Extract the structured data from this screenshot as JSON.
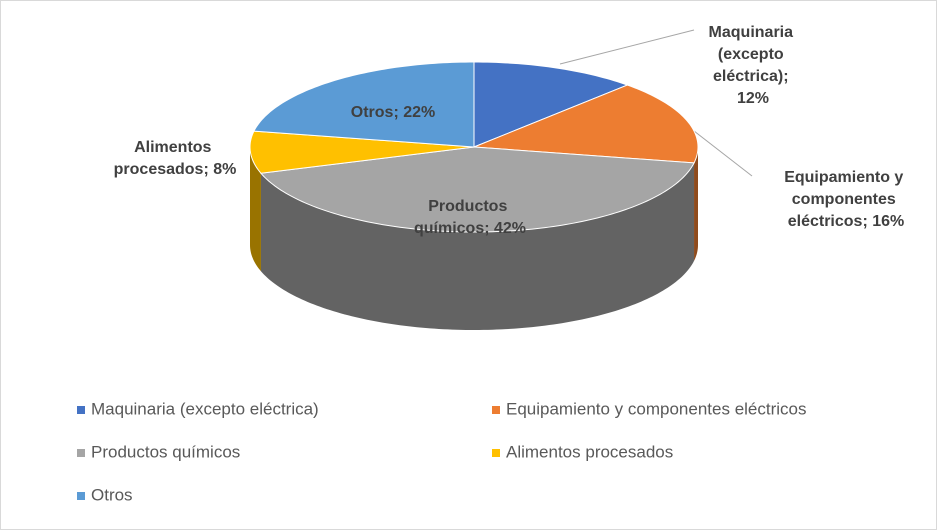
{
  "chart_data": {
    "type": "pie",
    "three_d": true,
    "categories": [
      "Maquinaria (excepto eléctrica)",
      "Equipamiento y componentes eléctricos",
      "Productos químicos",
      "Alimentos procesados",
      "Otros"
    ],
    "values": [
      12,
      16,
      42,
      8,
      22
    ],
    "value_labels": [
      "Maquinaria (excepto eléctrica); 12%",
      "Equipamiento y componentes eléctricos; 16%",
      "Productos químicos; 42%",
      "Alimentos procesados; 8%",
      "Otros; 22%"
    ],
    "colors": [
      "#4472c4",
      "#ed7d31",
      "#a5a5a5",
      "#ffc000",
      "#5b9bd5"
    ],
    "legend": "bottom"
  }
}
